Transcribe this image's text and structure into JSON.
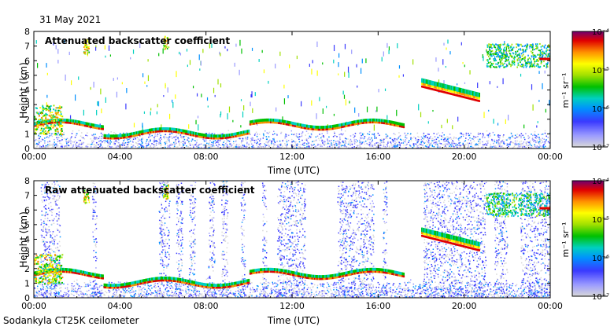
{
  "header": {
    "date": "31 May 2021"
  },
  "footer": {
    "instrument": "Sodankyla CT25K ceilometer"
  },
  "colors": {
    "scale": [
      "#d8d8d8",
      "#9a9aff",
      "#3a3aff",
      "#0090ff",
      "#00d0c0",
      "#00c000",
      "#a0e000",
      "#ffff00",
      "#ff9000",
      "#e00000",
      "#700070"
    ],
    "background": "#ffffff",
    "noise": "#c8c8c8"
  },
  "chart_data": [
    {
      "type": "heatmap",
      "title": "Attenuated backscatter coefficient",
      "xlabel": "Time (UTC)",
      "ylabel": "Height (km)",
      "x_ticks": [
        "00:00",
        "04:00",
        "08:00",
        "12:00",
        "16:00",
        "20:00",
        "00:00"
      ],
      "x_tick_hours": [
        0,
        4,
        8,
        12,
        16,
        20,
        24
      ],
      "xlim": [
        0,
        24
      ],
      "y_ticks": [
        "0",
        "1",
        "2",
        "3",
        "4",
        "5",
        "6",
        "7",
        "8"
      ],
      "ylim": [
        0,
        8
      ],
      "colorbar": {
        "label": "m⁻¹ sr⁻¹",
        "ticks": [
          "10⁻⁷",
          "10⁻⁶",
          "10⁻⁵",
          "10⁻⁴"
        ],
        "range_log10": [
          -7,
          -4
        ]
      },
      "features": [
        {
          "name": "low cloud layer",
          "start_h": 1.3,
          "end_h": 17.0,
          "height_km_start": 1.7,
          "height_km_end": 1.6
        },
        {
          "name": "elevated cloud layer",
          "start_h": 18.0,
          "end_h": 20.7,
          "height_km_start": 4.3,
          "height_km_end": 3.3
        },
        {
          "name": "high cloud",
          "start_h": 21.0,
          "end_h": 24.0,
          "height_km": 6.2
        }
      ]
    },
    {
      "type": "heatmap",
      "title": "Raw attenuated backscatter coefficient",
      "xlabel": "Time (UTC)",
      "ylabel": "Height (km)",
      "x_ticks": [
        "00:00",
        "04:00",
        "08:00",
        "12:00",
        "16:00",
        "20:00",
        "00:00"
      ],
      "x_tick_hours": [
        0,
        4,
        8,
        12,
        16,
        20,
        24
      ],
      "xlim": [
        0,
        24
      ],
      "y_ticks": [
        "0",
        "1",
        "2",
        "3",
        "4",
        "5",
        "6",
        "7",
        "8"
      ],
      "ylim": [
        0,
        8
      ],
      "colorbar": {
        "label": "m⁻¹ sr⁻¹",
        "ticks": [
          "10⁻⁷",
          "10⁻⁶",
          "10⁻⁵",
          "10⁻⁴"
        ],
        "range_log10": [
          -7,
          -4
        ]
      }
    }
  ]
}
